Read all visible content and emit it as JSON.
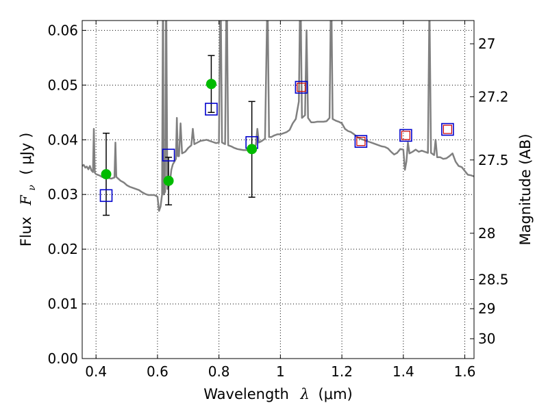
{
  "chart_data": {
    "type": "line",
    "xlabel": "Wavelength",
    "xlabel_symbol": "λ",
    "xlabel_unit": "(μm)",
    "ylabel": "Flux",
    "ylabel_symbol": "F",
    "ylabel_subscript": "ν",
    "ylabel_unit": "( μJy )",
    "y2label": "Magnitude (AB)",
    "xlim": [
      0.355,
      1.63
    ],
    "ylim": [
      0.0,
      0.0618
    ],
    "xticks": [
      0.4,
      0.6,
      0.8,
      1.0,
      1.2,
      1.4,
      1.6
    ],
    "xtick_labels": [
      "0.4",
      "0.6",
      "0.8",
      "1",
      "1.2",
      "1.4",
      "1.6"
    ],
    "yticks": [
      0.0,
      0.01,
      0.02,
      0.03,
      0.04,
      0.05,
      0.06
    ],
    "ytick_labels": [
      "0.00",
      "0.01",
      "0.02",
      "0.03",
      "0.04",
      "0.05",
      "0.06"
    ],
    "y2ticks": [
      27,
      27.2,
      27.5,
      28,
      28.5,
      29,
      30
    ],
    "y2tick_labels": [
      "27",
      "27.2",
      "27.5",
      "28",
      "28.5",
      "29",
      "30"
    ],
    "grid": true,
    "colors": {
      "model": "#808080",
      "observed": "#00bb00",
      "model_photometry": "#0000cc",
      "upper_limit": "#cc0000",
      "error_bar": "#000000"
    },
    "model_spectrum": [
      [
        0.355,
        0.0352
      ],
      [
        0.36,
        0.0354
      ],
      [
        0.365,
        0.0349
      ],
      [
        0.37,
        0.0351
      ],
      [
        0.375,
        0.0346
      ],
      [
        0.38,
        0.0352
      ],
      [
        0.385,
        0.0344
      ],
      [
        0.39,
        0.0341
      ],
      [
        0.393,
        0.042
      ],
      [
        0.396,
        0.034
      ],
      [
        0.4,
        0.0337
      ],
      [
        0.41,
        0.0335
      ],
      [
        0.42,
        0.0332
      ],
      [
        0.43,
        0.0331
      ],
      [
        0.44,
        0.033
      ],
      [
        0.45,
        0.0329
      ],
      [
        0.455,
        0.033
      ],
      [
        0.46,
        0.0331
      ],
      [
        0.463,
        0.0395
      ],
      [
        0.466,
        0.0332
      ],
      [
        0.47,
        0.033
      ],
      [
        0.48,
        0.0325
      ],
      [
        0.49,
        0.0322
      ],
      [
        0.5,
        0.0317
      ],
      [
        0.51,
        0.0314
      ],
      [
        0.52,
        0.0312
      ],
      [
        0.53,
        0.031
      ],
      [
        0.54,
        0.0308
      ],
      [
        0.55,
        0.0304
      ],
      [
        0.56,
        0.0301
      ],
      [
        0.57,
        0.0299
      ],
      [
        0.58,
        0.0299
      ],
      [
        0.59,
        0.0299
      ],
      [
        0.6,
        0.0296
      ],
      [
        0.605,
        0.027
      ],
      [
        0.61,
        0.0278
      ],
      [
        0.615,
        0.03
      ],
      [
        0.618,
        0.07
      ],
      [
        0.62,
        0.03
      ],
      [
        0.625,
        0.0305
      ],
      [
        0.628,
        0.07
      ],
      [
        0.632,
        0.031
      ],
      [
        0.64,
        0.032
      ],
      [
        0.645,
        0.0345
      ],
      [
        0.65,
        0.0355
      ],
      [
        0.655,
        0.036
      ],
      [
        0.66,
        0.0365
      ],
      [
        0.663,
        0.044
      ],
      [
        0.666,
        0.037
      ],
      [
        0.67,
        0.037
      ],
      [
        0.675,
        0.043
      ],
      [
        0.68,
        0.0375
      ],
      [
        0.69,
        0.0378
      ],
      [
        0.7,
        0.0385
      ],
      [
        0.71,
        0.039
      ],
      [
        0.715,
        0.042
      ],
      [
        0.72,
        0.0392
      ],
      [
        0.73,
        0.0395
      ],
      [
        0.74,
        0.0398
      ],
      [
        0.75,
        0.0399
      ],
      [
        0.76,
        0.04
      ],
      [
        0.77,
        0.0398
      ],
      [
        0.78,
        0.0396
      ],
      [
        0.79,
        0.0394
      ],
      [
        0.8,
        0.0395
      ],
      [
        0.805,
        0.07
      ],
      [
        0.81,
        0.0395
      ],
      [
        0.82,
        0.0392
      ],
      [
        0.825,
        0.07
      ],
      [
        0.83,
        0.039
      ],
      [
        0.84,
        0.0388
      ],
      [
        0.85,
        0.0385
      ],
      [
        0.86,
        0.0383
      ],
      [
        0.87,
        0.0382
      ],
      [
        0.88,
        0.0381
      ],
      [
        0.89,
        0.0381
      ],
      [
        0.9,
        0.0383
      ],
      [
        0.91,
        0.0386
      ],
      [
        0.92,
        0.039
      ],
      [
        0.925,
        0.042
      ],
      [
        0.93,
        0.0395
      ],
      [
        0.94,
        0.0398
      ],
      [
        0.95,
        0.0402
      ],
      [
        0.958,
        0.067
      ],
      [
        0.963,
        0.0405
      ],
      [
        0.97,
        0.0405
      ],
      [
        0.98,
        0.0408
      ],
      [
        0.99,
        0.041
      ],
      [
        1.0,
        0.041
      ],
      [
        1.01,
        0.0412
      ],
      [
        1.02,
        0.0414
      ],
      [
        1.03,
        0.0418
      ],
      [
        1.04,
        0.043
      ],
      [
        1.05,
        0.0438
      ],
      [
        1.06,
        0.047
      ],
      [
        1.065,
        0.07
      ],
      [
        1.07,
        0.044
      ],
      [
        1.08,
        0.0445
      ],
      [
        1.085,
        0.06
      ],
      [
        1.09,
        0.044
      ],
      [
        1.1,
        0.0432
      ],
      [
        1.11,
        0.0432
      ],
      [
        1.12,
        0.0433
      ],
      [
        1.13,
        0.0433
      ],
      [
        1.14,
        0.0433
      ],
      [
        1.15,
        0.0434
      ],
      [
        1.16,
        0.044
      ],
      [
        1.165,
        0.07
      ],
      [
        1.17,
        0.0438
      ],
      [
        1.18,
        0.0435
      ],
      [
        1.19,
        0.0433
      ],
      [
        1.2,
        0.043
      ],
      [
        1.21,
        0.042
      ],
      [
        1.22,
        0.0416
      ],
      [
        1.23,
        0.0414
      ],
      [
        1.24,
        0.041
      ],
      [
        1.25,
        0.0405
      ],
      [
        1.26,
        0.0402
      ],
      [
        1.27,
        0.04
      ],
      [
        1.28,
        0.0398
      ],
      [
        1.29,
        0.0396
      ],
      [
        1.3,
        0.0394
      ],
      [
        1.31,
        0.0392
      ],
      [
        1.32,
        0.039
      ],
      [
        1.33,
        0.0388
      ],
      [
        1.34,
        0.0387
      ],
      [
        1.35,
        0.0384
      ],
      [
        1.36,
        0.0378
      ],
      [
        1.37,
        0.0373
      ],
      [
        1.38,
        0.0376
      ],
      [
        1.39,
        0.0383
      ],
      [
        1.4,
        0.0382
      ],
      [
        1.405,
        0.0345
      ],
      [
        1.41,
        0.036
      ],
      [
        1.415,
        0.0395
      ],
      [
        1.42,
        0.0375
      ],
      [
        1.43,
        0.0378
      ],
      [
        1.44,
        0.0382
      ],
      [
        1.45,
        0.0378
      ],
      [
        1.46,
        0.038
      ],
      [
        1.47,
        0.0378
      ],
      [
        1.48,
        0.0376
      ],
      [
        1.485,
        0.065
      ],
      [
        1.49,
        0.0376
      ],
      [
        1.5,
        0.0372
      ],
      [
        1.505,
        0.04
      ],
      [
        1.51,
        0.0368
      ],
      [
        1.52,
        0.0368
      ],
      [
        1.53,
        0.0365
      ],
      [
        1.54,
        0.0366
      ],
      [
        1.55,
        0.037
      ],
      [
        1.56,
        0.0375
      ],
      [
        1.57,
        0.036
      ],
      [
        1.58,
        0.0352
      ],
      [
        1.59,
        0.035
      ],
      [
        1.6,
        0.0343
      ],
      [
        1.61,
        0.0336
      ],
      [
        1.62,
        0.0335
      ],
      [
        1.63,
        0.0333
      ]
    ],
    "observed_points": [
      {
        "x": 0.433,
        "y": 0.0337,
        "yerr_low": 0.0262,
        "yerr_high": 0.0412
      },
      {
        "x": 0.636,
        "y": 0.0325,
        "yerr_low": 0.0281,
        "yerr_high": 0.0368
      },
      {
        "x": 0.775,
        "y": 0.0502,
        "yerr_low": 0.045,
        "yerr_high": 0.0554
      },
      {
        "x": 0.907,
        "y": 0.0383,
        "yerr_low": 0.0295,
        "yerr_high": 0.047
      }
    ],
    "model_photometry": [
      {
        "x": 0.433,
        "y": 0.0298
      },
      {
        "x": 0.636,
        "y": 0.0372
      },
      {
        "x": 0.775,
        "y": 0.0456
      },
      {
        "x": 0.907,
        "y": 0.0395
      },
      {
        "x": 1.068,
        "y": 0.0496
      },
      {
        "x": 1.262,
        "y": 0.0397
      },
      {
        "x": 1.408,
        "y": 0.0408
      },
      {
        "x": 1.544,
        "y": 0.0419
      }
    ],
    "upper_limits": [
      {
        "x": 1.068,
        "y": 0.0496
      },
      {
        "x": 1.262,
        "y": 0.0397
      },
      {
        "x": 1.408,
        "y": 0.0408
      },
      {
        "x": 1.544,
        "y": 0.0419
      }
    ]
  }
}
